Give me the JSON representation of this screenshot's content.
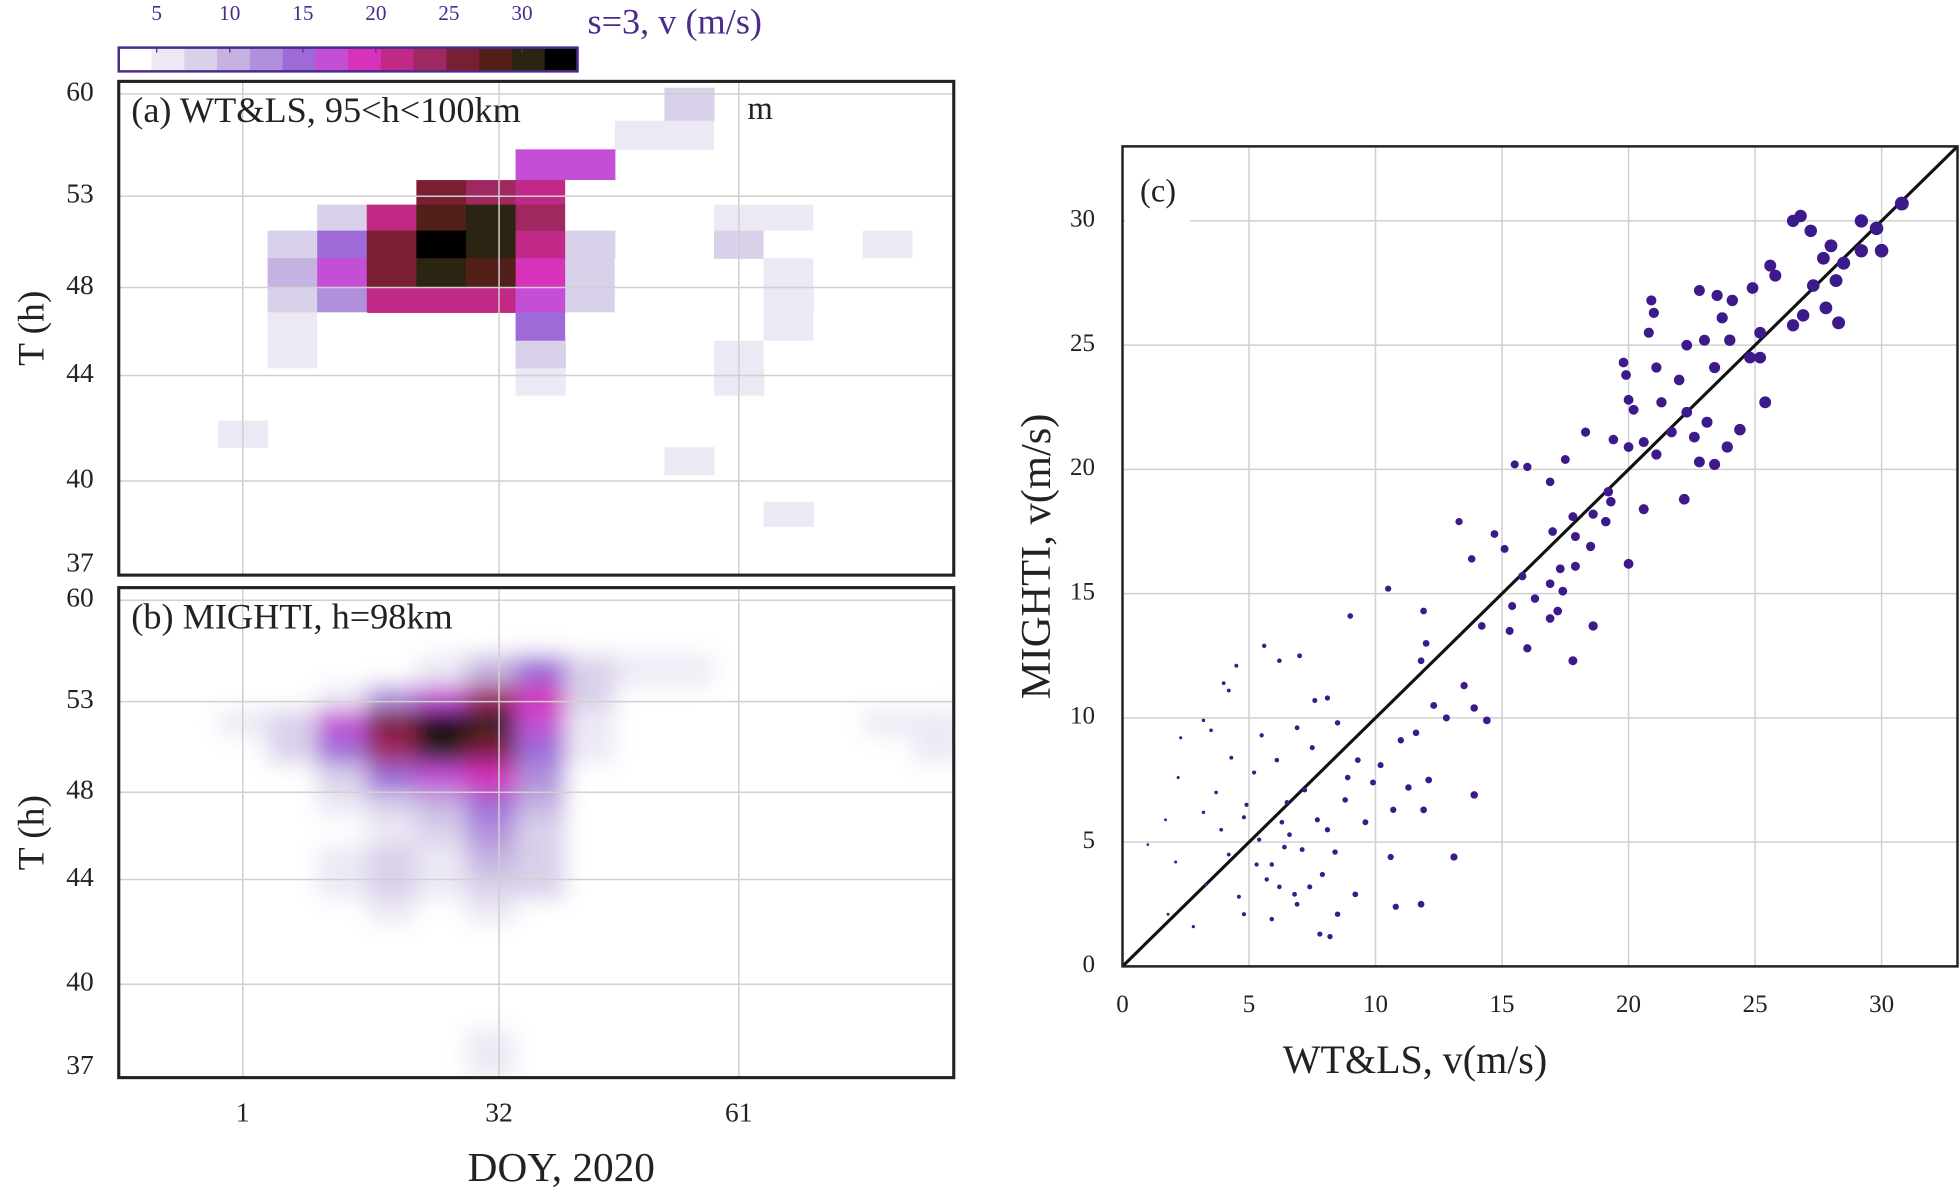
{
  "chart_data": [
    {
      "type": "heatmap",
      "title": "(a) WT&LS, 95<h<100km",
      "annotation": "m",
      "ylabel": "T (h)",
      "xlim": [
        -14,
        87
      ],
      "xticks": [
        1,
        32,
        61
      ],
      "xtick_labels": false,
      "ylim": [
        61,
        37
      ],
      "yscale": "reciprocal",
      "yticks": [
        60,
        53,
        48,
        44,
        40,
        37
      ],
      "grid": true,
      "smooth": false,
      "colorbar": {
        "title": "s=3, v (m/s)",
        "clim": [
          2.4,
          33.8
        ],
        "ticks": [
          5,
          10,
          15,
          20,
          25,
          30
        ],
        "colors": [
          "#ffffff",
          "#ece9f4",
          "#d9d0ea",
          "#c5b2e0",
          "#b08fdc",
          "#9d6ad8",
          "#c44fd6",
          "#d632ba",
          "#c02a86",
          "#a02860",
          "#7a1e34",
          "#522018",
          "#2c2412",
          "#000000"
        ]
      },
      "x_bins": [
        -14,
        -8,
        -2,
        4,
        10,
        16,
        22,
        28,
        34,
        40,
        46,
        52,
        58,
        64,
        70,
        76,
        82,
        88
      ],
      "y_bins": [
        60.5,
        58,
        56,
        54,
        52.5,
        51,
        49.5,
        48,
        46.8,
        45.5,
        44.3,
        43.2,
        42.2,
        41.2,
        40.2,
        39.3,
        38.5,
        37.7,
        37
      ],
      "z": [
        [
          null,
          null,
          null,
          null,
          null,
          null,
          null,
          null,
          null,
          null,
          4,
          8,
          null,
          null,
          null,
          null,
          2
        ],
        [
          null,
          null,
          null,
          null,
          null,
          null,
          null,
          null,
          null,
          3,
          5,
          6,
          3,
          null,
          null,
          null,
          null
        ],
        [
          null,
          null,
          null,
          null,
          null,
          null,
          null,
          null,
          18,
          16,
          null,
          null,
          3,
          null,
          null,
          null,
          null
        ],
        [
          2,
          null,
          null,
          null,
          null,
          3,
          26,
          24,
          22,
          3,
          null,
          null,
          4,
          2,
          2,
          null,
          null
        ],
        [
          2,
          null,
          null,
          null,
          8,
          22,
          28,
          30,
          24,
          4,
          null,
          null,
          6,
          5,
          4,
          3,
          2
        ],
        [
          2,
          3,
          null,
          8,
          14,
          27,
          33,
          30,
          22,
          8,
          null,
          null,
          7,
          4,
          4,
          6,
          3
        ],
        [
          null,
          3,
          null,
          10,
          16,
          26,
          30,
          28,
          20,
          8,
          3,
          null,
          null,
          5,
          3,
          4,
          null
        ],
        [
          null,
          null,
          2,
          7,
          12,
          22,
          22,
          22,
          18,
          7,
          4,
          3,
          4,
          6,
          null,
          null,
          null
        ],
        [
          null,
          null,
          4,
          6,
          4,
          null,
          null,
          null,
          14,
          4,
          null,
          3,
          3,
          6,
          3,
          null,
          null
        ],
        [
          null,
          null,
          3,
          5,
          4,
          null,
          null,
          null,
          8,
          null,
          3,
          3,
          5,
          4,
          null,
          null,
          null
        ],
        [
          null,
          null,
          null,
          3,
          null,
          null,
          3,
          null,
          6,
          null,
          3,
          null,
          5,
          null,
          3,
          null,
          null
        ],
        [
          null,
          null,
          null,
          3,
          null,
          null,
          null,
          null,
          null,
          null,
          null,
          null,
          null,
          null,
          null,
          null,
          null
        ],
        [
          null,
          null,
          6,
          null,
          4,
          null,
          null,
          3,
          null,
          4,
          null,
          null,
          null,
          null,
          null,
          null,
          null
        ],
        [
          null,
          null,
          null,
          null,
          null,
          null,
          null,
          null,
          null,
          3,
          null,
          6,
          null,
          null,
          null,
          null,
          null
        ],
        [
          null,
          null,
          null,
          null,
          null,
          null,
          null,
          null,
          null,
          3,
          3,
          3,
          null,
          null,
          null,
          null,
          null
        ],
        [
          null,
          null,
          null,
          null,
          null,
          null,
          null,
          null,
          null,
          null,
          4,
          null,
          null,
          5,
          null,
          null,
          null
        ],
        [
          null,
          null,
          null,
          null,
          2,
          null,
          null,
          null,
          null,
          null,
          null,
          null,
          null,
          null,
          null,
          null,
          null
        ],
        [
          null,
          null,
          null,
          null,
          null,
          null,
          null,
          null,
          null,
          null,
          null,
          null,
          null,
          null,
          null,
          null,
          null
        ]
      ]
    },
    {
      "type": "heatmap",
      "title": "(b) MIGHTI, h=98km",
      "ylabel": "T (h)",
      "xlabel": "DOY, 2020",
      "xlim": [
        -14,
        87
      ],
      "xticks": [
        1,
        32,
        61
      ],
      "xtick_labels": true,
      "ylim": [
        61,
        37
      ],
      "yscale": "reciprocal",
      "yticks": [
        60,
        53,
        48,
        44,
        40,
        37
      ],
      "grid": true,
      "smooth": true,
      "x_bins": [
        -14,
        -8,
        -2,
        4,
        10,
        16,
        22,
        28,
        34,
        40,
        46,
        52,
        58,
        64,
        70,
        76,
        82,
        88
      ],
      "y_bins": [
        60.5,
        58,
        56,
        54,
        52.5,
        51,
        49.5,
        48,
        46.8,
        45.5,
        44.3,
        43.2,
        42.2,
        41.2,
        40.2,
        39.3,
        38.5,
        37.7,
        37
      ],
      "z": [
        [
          null,
          null,
          null,
          null,
          null,
          null,
          null,
          null,
          null,
          null,
          null,
          null,
          null,
          null,
          null,
          null,
          null
        ],
        [
          null,
          null,
          null,
          null,
          null,
          2,
          3,
          3,
          3,
          4,
          3,
          4,
          2,
          null,
          null,
          null,
          null
        ],
        [
          null,
          null,
          2,
          2,
          3,
          4,
          6,
          10,
          14,
          8,
          5,
          6,
          3,
          null,
          null,
          null,
          null
        ],
        [
          null,
          2,
          3,
          4,
          6,
          12,
          18,
          24,
          20,
          8,
          3,
          2,
          null,
          null,
          2,
          3,
          null
        ],
        [
          null,
          3,
          5,
          8,
          16,
          26,
          32,
          30,
          18,
          6,
          2,
          null,
          null,
          null,
          3,
          5,
          6
        ],
        [
          null,
          2,
          4,
          8,
          14,
          24,
          30,
          26,
          14,
          5,
          2,
          null,
          null,
          null,
          2,
          4,
          6
        ],
        [
          null,
          null,
          2,
          4,
          8,
          14,
          18,
          20,
          12,
          4,
          null,
          null,
          null,
          null,
          null,
          2,
          3
        ],
        [
          null,
          null,
          null,
          3,
          5,
          8,
          10,
          14,
          10,
          4,
          null,
          2,
          null,
          null,
          null,
          null,
          null
        ],
        [
          null,
          2,
          null,
          2,
          4,
          6,
          8,
          12,
          9,
          3,
          2,
          3,
          null,
          null,
          null,
          null,
          null
        ],
        [
          null,
          null,
          null,
          null,
          6,
          8,
          6,
          10,
          8,
          2,
          2,
          3,
          null,
          null,
          null,
          null,
          null
        ],
        [
          null,
          null,
          null,
          null,
          6,
          9,
          6,
          9,
          7,
          2,
          null,
          2,
          null,
          null,
          null,
          null,
          null
        ],
        [
          null,
          null,
          null,
          2,
          4,
          5,
          4,
          6,
          4,
          null,
          null,
          null,
          null,
          null,
          null,
          null,
          null
        ],
        [
          null,
          null,
          null,
          null,
          2,
          2,
          2,
          3,
          2,
          null,
          2,
          null,
          null,
          null,
          null,
          null,
          null
        ],
        [
          null,
          null,
          2,
          null,
          null,
          null,
          null,
          2,
          2,
          3,
          null,
          null,
          null,
          null,
          null,
          null,
          null
        ],
        [
          null,
          null,
          null,
          2,
          null,
          null,
          2,
          3,
          2,
          null,
          null,
          null,
          null,
          null,
          null,
          null,
          null
        ],
        [
          null,
          null,
          3,
          null,
          null,
          2,
          3,
          4,
          3,
          2,
          null,
          null,
          null,
          null,
          null,
          null,
          null
        ],
        [
          null,
          null,
          2,
          null,
          null,
          3,
          3,
          5,
          3,
          null,
          null,
          null,
          null,
          null,
          null,
          null,
          null
        ],
        [
          null,
          null,
          null,
          null,
          null,
          2,
          3,
          6,
          2,
          null,
          null,
          null,
          null,
          null,
          null,
          null,
          null
        ]
      ]
    },
    {
      "type": "scatter",
      "title": "(c)",
      "xlabel": "WT&LS, v(m/s)",
      "ylabel": "MIGHTI, v(m/s)",
      "xlim": [
        0,
        33
      ],
      "ylim": [
        0,
        33
      ],
      "xticks": [
        0,
        5,
        10,
        15,
        20,
        25,
        30
      ],
      "yticks": [
        0,
        5,
        10,
        15,
        20,
        25,
        30
      ],
      "grid": true,
      "diagonal": true,
      "color": "#3d1a8c",
      "x": [
        26.8,
        26.5,
        29.2,
        29.8,
        30.8,
        27.2,
        28,
        28.5,
        27.7,
        28.2,
        29.2,
        30,
        25.6,
        25.8,
        24.9,
        23.5,
        22.8,
        24.1,
        27.3,
        27.8,
        20.9,
        21,
        23.7,
        26.9,
        25.2,
        26.5,
        28.3,
        22.3,
        23,
        24,
        20.8,
        19.8,
        21.1,
        19.9,
        22,
        25.2,
        24.8,
        23.4,
        21.3,
        22.3,
        20,
        20.2,
        25.4,
        23.1,
        21.7,
        20.6,
        22.6,
        24.4,
        19.4,
        18.3,
        20,
        21.1,
        22.8,
        23.4,
        23.9,
        17.5,
        15.5,
        16,
        16.9,
        19.2,
        18.6,
        17.8,
        19.1,
        19.3,
        22.2,
        20.6,
        17,
        17.9,
        18.5,
        17.9,
        17.3,
        16.9,
        16.3,
        17.4,
        20,
        15.8,
        16.9,
        15.4,
        17.2,
        18.6,
        17.8,
        16,
        15.3,
        14.2,
        13.3,
        14.7,
        13.8,
        15.1,
        11.9,
        10.5,
        12,
        11.8,
        12.3,
        13.5,
        13.9,
        14.4,
        12.8,
        11.6,
        11,
        10.2,
        11.3,
        12.1,
        13.9,
        9.9,
        10.7,
        11.9,
        9.3,
        8.9,
        10.6,
        10.8,
        11.8,
        13.1,
        8.5,
        8.2,
        7.8,
        9.2,
        8.5,
        9,
        8.1,
        7.6,
        7,
        6.2,
        5.6,
        4.5,
        4,
        3.2,
        2.3,
        2.2,
        3.2,
        1.7,
        2.1,
        1,
        1.8,
        2.8,
        3.3,
        4.2,
        4.8,
        5.4,
        5.9,
        6.2,
        6.6,
        7.1,
        7.4,
        6.9,
        5.7,
        4.6,
        4.9,
        5.2,
        6.1,
        6.5,
        7.2,
        7.7,
        8.1,
        5.5,
        4.3,
        3.7,
        3.9,
        5.3,
        6.4,
        7.9,
        8.4,
        4.8,
        5.9,
        6.8,
        7.5,
        6.9,
        8.8,
        9.6,
        3.5,
        4.2,
        6.3
      ],
      "values": [
        30.2,
        30,
        30,
        29.7,
        30.7,
        29.6,
        29,
        28.3,
        28.5,
        27.6,
        28.8,
        28.8,
        28.2,
        27.8,
        27.3,
        27,
        27.2,
        26.8,
        27.4,
        26.5,
        26.8,
        26.3,
        26.1,
        26.2,
        25.5,
        25.8,
        25.9,
        25,
        25.2,
        25.2,
        25.5,
        24.3,
        24.1,
        23.8,
        23.6,
        24.5,
        24.5,
        24.1,
        22.7,
        22.3,
        22.8,
        22.4,
        22.7,
        21.9,
        21.5,
        21.1,
        21.3,
        21.6,
        21.2,
        21.5,
        20.9,
        20.6,
        20.3,
        20.2,
        20.9,
        20.4,
        20.2,
        20.1,
        19.5,
        19.1,
        18.2,
        18.1,
        17.9,
        18.7,
        18.8,
        18.4,
        17.5,
        17.3,
        16.9,
        16.1,
        16,
        15.4,
        14.8,
        15.1,
        16.2,
        15.7,
        14,
        14.5,
        14.3,
        13.7,
        12.3,
        12.8,
        13.5,
        13.7,
        17.9,
        17.4,
        16.4,
        16.8,
        14.3,
        15.2,
        13,
        12.3,
        10.5,
        11.3,
        10.4,
        9.9,
        10,
        9.4,
        9.1,
        8.1,
        7.2,
        7.5,
        6.9,
        7.4,
        6.3,
        6.3,
        8.3,
        7.6,
        4.4,
        2.4,
        2.5,
        4.4,
        2.1,
        1.2,
        1.3,
        2.9,
        9.8,
        14.1,
        10.8,
        10.7,
        12.5,
        12.3,
        12.9,
        12.1,
        11.4,
        9.9,
        9.2,
        7.6,
        6.2,
        5.9,
        4.2,
        4.9,
        2.1,
        1.6,
        3.3,
        4.5,
        6,
        5.1,
        4.1,
        3.2,
        5.3,
        4.7,
        3.2,
        2.5,
        3.5,
        2.8,
        6.5,
        7.8,
        8.3,
        6.6,
        7.1,
        5.9,
        5.5,
        9.3,
        8.4,
        7,
        5.5,
        4.1,
        4.8,
        3.7,
        4.6,
        2.1,
        1.9,
        2.9,
        8.8,
        9.6,
        6.7,
        5.8,
        9.5,
        11.1,
        5.8
      ]
    }
  ]
}
